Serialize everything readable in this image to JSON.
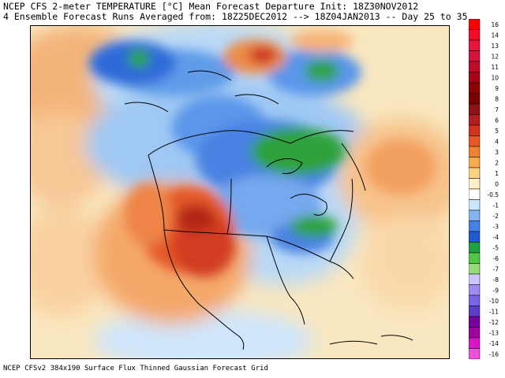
{
  "header": {
    "line1": "NCEP CFS 2-meter TEMPERATURE [°C] Mean Forecast Departure Init: 18Z30NOV2012",
    "line2": "4 Ensemble Forecast Runs Averaged from: 18Z25DEC2012 --> 18Z04JAN2013 -- Day 25 to 35"
  },
  "footer": {
    "text": "NCEP CFSv2 384x190 Surface Flux Thinned Gaussian Forecast Grid"
  },
  "legend": {
    "labels": [
      "16",
      "14",
      "13",
      "12",
      "11",
      "10",
      "9",
      "8",
      "7",
      "6",
      "5",
      "4",
      "3",
      "2",
      "1",
      "0",
      "-0.5",
      "-1",
      "-2",
      "-3",
      "-4",
      "-5",
      "-6",
      "-7",
      "-8",
      "-9",
      "-10",
      "-11",
      "-12",
      "-13",
      "-14",
      "-16"
    ],
    "colors": [
      "#ff0000",
      "#f50a2a",
      "#e8143c",
      "#d4143c",
      "#c00a28",
      "#a80014",
      "#8c0000",
      "#780000",
      "#8c1414",
      "#b41e1e",
      "#d2321e",
      "#e65a28",
      "#f08232",
      "#f7aa50",
      "#fad282",
      "#fdf0c8",
      "#ffffff",
      "#c8e6ff",
      "#82b4f0",
      "#4682e6",
      "#1e5ad2",
      "#1ea03c",
      "#50c846",
      "#96dc78",
      "#c8c8ff",
      "#a08cf0",
      "#7864e6",
      "#5a3cc8",
      "#7800a0",
      "#a000a0",
      "#dc14c8",
      "#f050dc"
    ]
  }
}
